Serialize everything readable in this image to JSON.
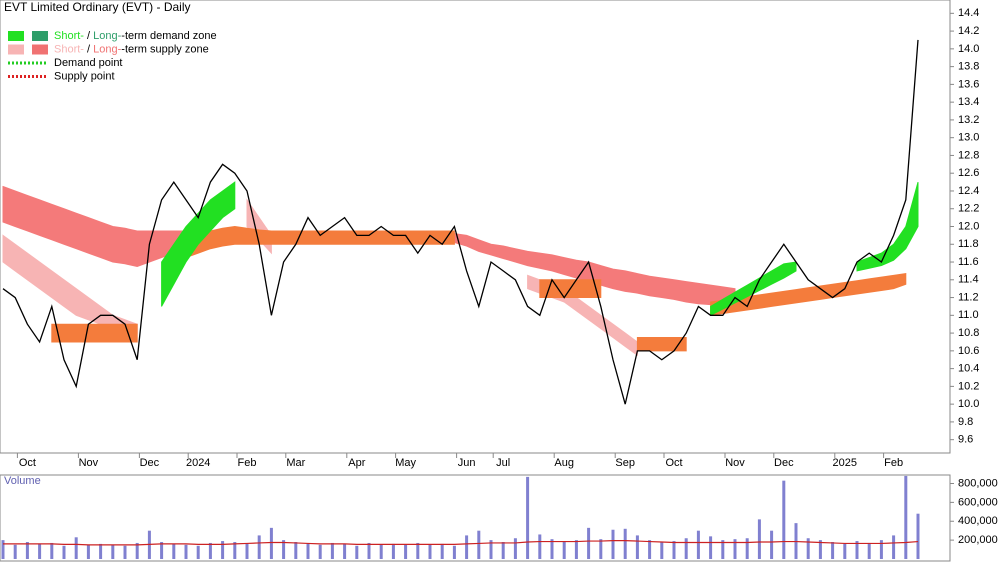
{
  "chart_data": [
    {
      "type": "line",
      "title": "EVT Limited Ordinary (EVT) - Daily",
      "legend": [
        {
          "short": "Short-",
          "sep": " / ",
          "long": "Long-",
          "rest": "-term demand zone",
          "short_color": "#22e022",
          "long_color": "#2e9e6a"
        },
        {
          "short": "Short-",
          "sep": " / ",
          "long": "Long-",
          "rest": "-term supply zone",
          "short_color": "#f7b4b4",
          "long_color": "#f07272"
        }
      ],
      "points": [
        {
          "label": "Demand point",
          "color": "#22cc22"
        },
        {
          "label": "Supply point",
          "color": "#dd2222"
        }
      ],
      "categories": [
        null,
        null,
        "Oct",
        null,
        null,
        null,
        null,
        "Nov",
        null,
        null,
        null,
        null,
        "Dec",
        null,
        null,
        null,
        "2024",
        null,
        null,
        null,
        "Feb",
        null,
        null,
        null,
        "Mar",
        null,
        null,
        null,
        null,
        "Apr",
        null,
        null,
        null,
        "May",
        null,
        null,
        null,
        null,
        "Jun",
        null,
        null,
        "Jul",
        null,
        null,
        null,
        null,
        "Aug",
        null,
        null,
        null,
        null,
        "Sep",
        null,
        null,
        null,
        "Oct",
        null,
        null,
        null,
        null,
        "Nov",
        null,
        null,
        null,
        "Dec",
        null,
        null,
        null,
        null,
        "2025",
        null,
        null,
        null,
        "Feb",
        null,
        null
      ],
      "values": [
        11.3,
        11.2,
        10.9,
        10.7,
        11.1,
        10.5,
        10.2,
        10.9,
        11.0,
        11.0,
        10.9,
        10.5,
        11.8,
        12.3,
        12.5,
        12.3,
        12.1,
        12.5,
        12.7,
        12.6,
        12.4,
        11.8,
        11.0,
        11.6,
        11.8,
        12.1,
        11.9,
        12.0,
        12.1,
        11.9,
        11.9,
        12.0,
        11.9,
        11.9,
        11.7,
        11.9,
        11.8,
        12.0,
        11.5,
        11.1,
        11.6,
        11.5,
        11.4,
        11.1,
        11.0,
        11.4,
        11.2,
        11.4,
        11.6,
        11.1,
        10.5,
        10.0,
        10.6,
        10.6,
        10.5,
        10.6,
        10.8,
        11.1,
        11.0,
        11.0,
        11.2,
        11.1,
        11.4,
        11.6,
        11.8,
        11.6,
        11.4,
        11.3,
        11.2,
        11.3,
        11.6,
        11.7,
        11.6,
        11.9,
        12.3,
        14.1
      ],
      "color": "#000000",
      "zones": [
        {
          "color": "#f47a7a",
          "upper": [
            12.45,
            12.4,
            12.35,
            12.3,
            12.25,
            12.2,
            12.15,
            12.1,
            12.05,
            12.0,
            11.98,
            11.95,
            11.95,
            11.95,
            11.95,
            11.95,
            11.95,
            11.92,
            11.92,
            11.92,
            11.92,
            11.92,
            11.92,
            11.92,
            11.92,
            11.92,
            11.92,
            11.92,
            11.92,
            11.92,
            11.92,
            11.92,
            11.92,
            11.92,
            11.92,
            11.92,
            11.92,
            11.92,
            11.9,
            11.85,
            11.8,
            11.78,
            11.75,
            11.72,
            11.7,
            11.68,
            11.65,
            11.62,
            11.6,
            11.56,
            11.52,
            11.5,
            11.47,
            11.44,
            11.42,
            11.4,
            11.38,
            11.36,
            11.34,
            11.32,
            11.3,
            null,
            null,
            null,
            null,
            null,
            null,
            null,
            null,
            null,
            null,
            null,
            null,
            null,
            null,
            null
          ],
          "lower": [
            12.05,
            12.0,
            11.95,
            11.9,
            11.85,
            11.8,
            11.75,
            11.7,
            11.65,
            11.6,
            11.58,
            11.55,
            11.6,
            11.65,
            11.7,
            11.75,
            11.8,
            11.82,
            11.82,
            11.82,
            11.82,
            11.82,
            11.82,
            11.82,
            11.82,
            11.82,
            11.82,
            11.82,
            11.82,
            11.82,
            11.82,
            11.82,
            11.82,
            11.82,
            11.82,
            11.82,
            11.82,
            11.82,
            11.78,
            11.72,
            11.68,
            11.64,
            11.6,
            11.56,
            11.53,
            11.5,
            11.46,
            11.42,
            11.38,
            11.34,
            11.3,
            11.27,
            11.25,
            11.22,
            11.2,
            11.18,
            11.15,
            11.13,
            11.12,
            11.12,
            11.12,
            null,
            null,
            null,
            null,
            null,
            null,
            null,
            null,
            null,
            null,
            null,
            null,
            null,
            null,
            null
          ]
        },
        {
          "color": "#f7b4b4",
          "upper": [
            11.9,
            11.8,
            11.7,
            11.6,
            11.5,
            11.4,
            11.3,
            11.2,
            11.1,
            11.0,
            10.95,
            10.9,
            null,
            null,
            null,
            null,
            null,
            null,
            null,
            null,
            12.3,
            12.1,
            11.9,
            null,
            null,
            null,
            null,
            null,
            null,
            null,
            null,
            null,
            null,
            null,
            null,
            null,
            null,
            null,
            null,
            null,
            null,
            null,
            null,
            11.45,
            11.4,
            11.35,
            11.3,
            11.2,
            11.1,
            11.0,
            10.9,
            10.8,
            10.7,
            null,
            null,
            null,
            null,
            null,
            null,
            null,
            null,
            null,
            null,
            null,
            null,
            null,
            null,
            null,
            null,
            null,
            null,
            null,
            null,
            null,
            null,
            null
          ],
          "lower": [
            11.6,
            11.5,
            11.4,
            11.3,
            11.2,
            11.1,
            11.0,
            10.95,
            10.9,
            10.85,
            10.82,
            10.8,
            null,
            null,
            null,
            null,
            null,
            null,
            null,
            null,
            12.0,
            11.85,
            11.7,
            null,
            null,
            null,
            null,
            null,
            null,
            null,
            null,
            null,
            null,
            null,
            null,
            null,
            null,
            null,
            null,
            null,
            null,
            null,
            null,
            11.3,
            11.25,
            11.2,
            11.15,
            11.05,
            10.95,
            10.85,
            10.75,
            10.65,
            10.55,
            null,
            null,
            null,
            null,
            null,
            null,
            null,
            null,
            null,
            null,
            null,
            null,
            null,
            null,
            null,
            null,
            null,
            null,
            null,
            null,
            null,
            null,
            null
          ]
        },
        {
          "color": "#f47c3c",
          "upper": [
            null,
            null,
            null,
            null,
            10.9,
            10.9,
            10.9,
            10.9,
            10.9,
            10.9,
            10.9,
            10.9,
            null,
            null,
            11.7,
            11.8,
            11.9,
            11.95,
            11.98,
            12.0,
            11.98,
            11.96,
            11.95,
            11.95,
            11.95,
            11.95,
            11.95,
            11.95,
            11.95,
            11.95,
            11.95,
            11.95,
            11.95,
            11.95,
            11.95,
            11.95,
            11.95,
            11.95,
            null,
            null,
            null,
            null,
            null,
            null,
            11.4,
            11.4,
            11.4,
            11.4,
            11.4,
            11.4,
            null,
            null,
            10.75,
            10.75,
            10.75,
            10.75,
            10.75,
            null,
            11.15,
            11.17,
            11.19,
            11.21,
            11.23,
            11.25,
            11.27,
            11.29,
            11.31,
            11.33,
            11.35,
            11.37,
            11.39,
            11.41,
            11.43,
            11.45,
            11.47,
            null
          ],
          "lower": [
            null,
            null,
            null,
            null,
            10.7,
            10.7,
            10.7,
            10.7,
            10.7,
            10.7,
            10.7,
            10.7,
            null,
            null,
            11.6,
            11.65,
            11.7,
            11.75,
            11.78,
            11.8,
            11.8,
            11.8,
            11.8,
            11.8,
            11.8,
            11.8,
            11.8,
            11.8,
            11.8,
            11.8,
            11.8,
            11.8,
            11.8,
            11.8,
            11.8,
            11.8,
            11.8,
            11.8,
            null,
            null,
            null,
            null,
            null,
            null,
            11.2,
            11.2,
            11.2,
            11.2,
            11.2,
            11.2,
            null,
            null,
            10.6,
            10.6,
            10.6,
            10.6,
            10.6,
            null,
            11.0,
            11.02,
            11.04,
            11.06,
            11.08,
            11.1,
            11.12,
            11.14,
            11.16,
            11.18,
            11.2,
            11.22,
            11.24,
            11.26,
            11.28,
            11.3,
            11.35,
            null
          ]
        },
        {
          "color": "#22e022",
          "upper": [
            null,
            null,
            null,
            null,
            null,
            null,
            null,
            null,
            null,
            null,
            null,
            null,
            null,
            11.6,
            11.8,
            12.0,
            12.15,
            12.3,
            12.4,
            12.5,
            null,
            null,
            null,
            null,
            null,
            null,
            null,
            null,
            null,
            null,
            null,
            null,
            null,
            null,
            null,
            null,
            null,
            null,
            null,
            null,
            null,
            null,
            null,
            null,
            null,
            null,
            null,
            null,
            null,
            null,
            null,
            null,
            null,
            null,
            null,
            null,
            null,
            null,
            11.1,
            11.18,
            11.26,
            11.34,
            11.42,
            11.5,
            11.58,
            11.6,
            null,
            null,
            null,
            null,
            11.6,
            11.65,
            11.7,
            11.8,
            12.0,
            12.5
          ],
          "lower": [
            null,
            null,
            null,
            null,
            null,
            null,
            null,
            null,
            null,
            null,
            null,
            null,
            null,
            11.1,
            11.35,
            11.6,
            11.8,
            11.95,
            12.1,
            12.2,
            null,
            null,
            null,
            null,
            null,
            null,
            null,
            null,
            null,
            null,
            null,
            null,
            null,
            null,
            null,
            null,
            null,
            null,
            null,
            null,
            null,
            null,
            null,
            null,
            null,
            null,
            null,
            null,
            null,
            null,
            null,
            null,
            null,
            null,
            null,
            null,
            null,
            null,
            11.0,
            11.07,
            11.14,
            11.21,
            11.28,
            11.35,
            11.42,
            11.5,
            null,
            null,
            null,
            null,
            11.5,
            11.53,
            11.56,
            11.62,
            11.75,
            12.0
          ]
        }
      ],
      "ylim": [
        9.45,
        14.55
      ],
      "yticks": [
        9.6,
        9.8,
        {
          "value": 10.0,
          "label": "10.0"
        },
        10.2,
        10.4,
        10.6,
        10.8,
        {
          "value": 11.0,
          "label": "11.0"
        },
        11.2,
        11.4,
        11.6,
        11.8,
        {
          "value": 12.0,
          "label": "12.0"
        },
        12.2,
        12.4,
        12.6,
        12.8,
        {
          "value": 13.0,
          "label": "13.0"
        },
        13.2,
        13.4,
        13.6,
        13.8,
        {
          "value": 14.0,
          "label": "14.0"
        },
        14.2,
        14.4
      ]
    },
    {
      "type": "bar",
      "title": "Volume",
      "color": "#8080d0",
      "ma_color": "#cc2222",
      "values": [
        200000,
        150000,
        180000,
        160000,
        170000,
        140000,
        230000,
        150000,
        160000,
        150000,
        140000,
        170000,
        300000,
        180000,
        160000,
        150000,
        140000,
        170000,
        190000,
        180000,
        160000,
        250000,
        330000,
        200000,
        180000,
        160000,
        150000,
        170000,
        160000,
        140000,
        170000,
        150000,
        160000,
        150000,
        170000,
        150000,
        160000,
        140000,
        250000,
        300000,
        200000,
        180000,
        220000,
        870000,
        260000,
        210000,
        190000,
        200000,
        330000,
        210000,
        310000,
        320000,
        250000,
        200000,
        180000,
        190000,
        220000,
        300000,
        240000,
        200000,
        210000,
        220000,
        420000,
        300000,
        830000,
        380000,
        220000,
        200000,
        180000,
        160000,
        190000,
        170000,
        200000,
        250000,
        880000,
        480000
      ],
      "ma": [
        160000,
        160000,
        160000,
        160000,
        160000,
        155000,
        155000,
        150000,
        150000,
        150000,
        150000,
        150000,
        155000,
        160000,
        160000,
        160000,
        155000,
        155000,
        155000,
        160000,
        165000,
        170000,
        175000,
        175000,
        170000,
        165000,
        160000,
        160000,
        160000,
        155000,
        155000,
        155000,
        155000,
        155000,
        155000,
        155000,
        155000,
        155000,
        160000,
        165000,
        170000,
        170000,
        170000,
        180000,
        185000,
        185000,
        185000,
        185000,
        190000,
        190000,
        195000,
        195000,
        190000,
        185000,
        180000,
        175000,
        175000,
        175000,
        175000,
        175000,
        175000,
        175000,
        180000,
        180000,
        185000,
        185000,
        180000,
        175000,
        170000,
        165000,
        165000,
        165000,
        165000,
        170000,
        175000,
        185000
      ],
      "ylim": [
        0,
        890000
      ],
      "yticks": [
        {
          "value": 200000,
          "label": "200,000"
        },
        {
          "value": 400000,
          "label": "400,000"
        },
        {
          "value": 600000,
          "label": "600,000"
        },
        {
          "value": 800000,
          "label": "800,000"
        }
      ]
    }
  ]
}
